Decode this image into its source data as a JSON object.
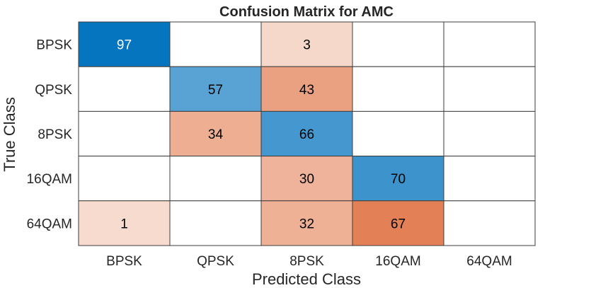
{
  "chart_data": {
    "type": "heatmap",
    "title": "Confusion Matrix for AMC",
    "xlabel": "Predicted Class",
    "ylabel": "True Class",
    "x_categories": [
      "BPSK",
      "QPSK",
      "8PSK",
      "16QAM",
      "64QAM"
    ],
    "y_categories": [
      "BPSK",
      "QPSK",
      "8PSK",
      "16QAM",
      "64QAM"
    ],
    "values": [
      [
        97,
        null,
        3,
        null,
        null
      ],
      [
        null,
        57,
        43,
        null,
        null
      ],
      [
        null,
        34,
        66,
        null,
        null
      ],
      [
        null,
        null,
        30,
        70,
        null
      ],
      [
        1,
        null,
        32,
        67,
        null
      ]
    ],
    "colors": {
      "correct": "#0072bd",
      "incorrect": "#d95319",
      "empty": "#ffffff",
      "grid": "#3c3c3c",
      "text_dark": "#000000",
      "text_light": "#ffffff"
    }
  }
}
